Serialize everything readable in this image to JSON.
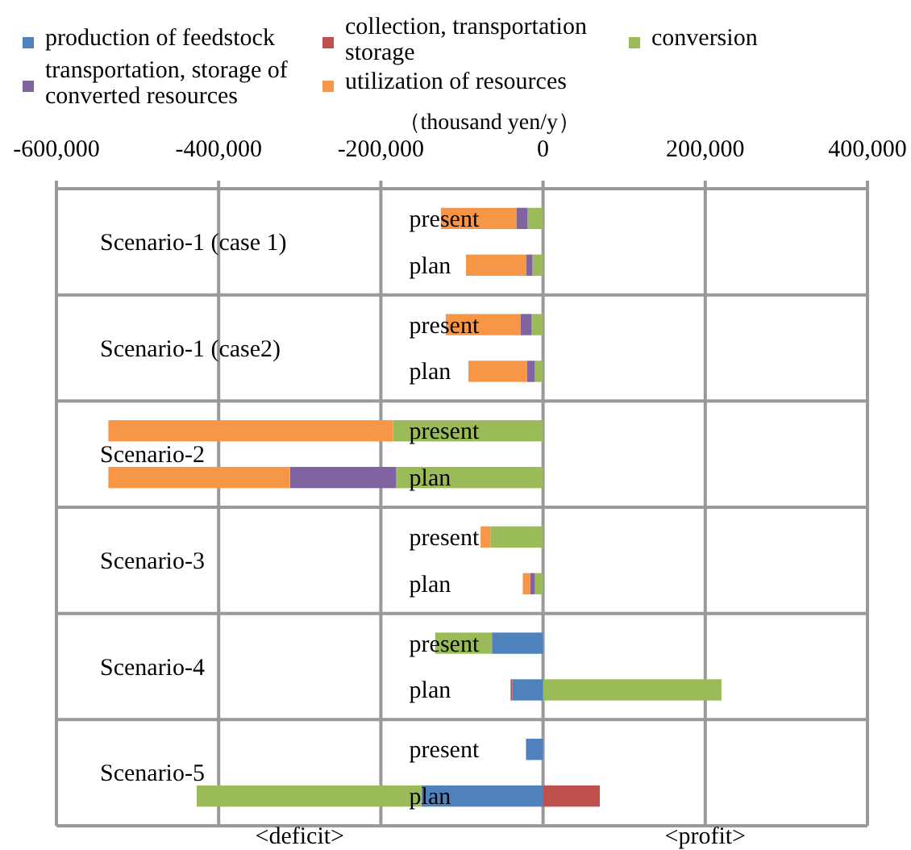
{
  "chart_data": {
    "type": "bar",
    "orientation": "horizontal",
    "stacked": true,
    "xlabel": "（thousand yen/y）",
    "categories": [
      "present",
      "plan",
      "present",
      "plan",
      "present",
      "plan",
      "present",
      "plan",
      "present",
      "plan",
      "present",
      "plan"
    ],
    "series": [
      {
        "name": "production of feedstock",
        "color": "#4f81bd",
        "values": [
          0,
          0,
          0,
          0,
          0,
          0,
          0,
          0,
          -63000,
          -38000,
          -21000,
          -150000
        ]
      },
      {
        "name": "collection, transportation storage",
        "color": "#c0504d",
        "values": [
          0,
          0,
          0,
          0,
          0,
          0,
          0,
          0,
          0,
          -2000,
          0,
          70000
        ]
      },
      {
        "name": "conversion",
        "color": "#9bbb59",
        "values": [
          -19000,
          -13000,
          -14000,
          -10000,
          -185000,
          -181000,
          -65000,
          -10000,
          -70000,
          220000,
          0,
          -277000
        ]
      },
      {
        "name": "transportation, storage of converted resources",
        "color": "#8064a2",
        "values": [
          -14000,
          -8000,
          -14000,
          -10000,
          0,
          -131000,
          0,
          -6000,
          0,
          0,
          0,
          0
        ]
      },
      {
        "name": "utilization of resources",
        "color": "#f79646",
        "values": [
          -93000,
          -74000,
          -92000,
          -72000,
          -351000,
          -224000,
          -12000,
          -9000,
          0,
          0,
          0,
          0
        ]
      }
    ],
    "xlim": [
      -600000,
      400000
    ],
    "xticks": [
      {
        "value": -600000,
        "label": "-600,000"
      },
      {
        "value": -400000,
        "label": "-400,000"
      },
      {
        "value": -200000,
        "label": "-200,000"
      },
      0,
      {
        "value": 200000,
        "label": "200,000"
      },
      {
        "value": 400000,
        "label": "400,000"
      }
    ],
    "grid": "x",
    "legend": "top",
    "annotations": [
      "Scenario-1 (case 1)",
      "Scenario-1 (case2)",
      "Scenario-2",
      "Scenario-3",
      "Scenario-4",
      "Scenario-5",
      "<deficit>",
      "<profit>"
    ]
  }
}
